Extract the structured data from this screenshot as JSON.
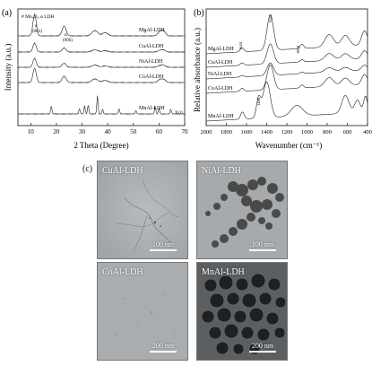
{
  "panel_a": {
    "label": "(a)",
    "legend": "# Mn₃O₄  α LDH",
    "xlabel": "2 Theta (Degree)",
    "ylabel": "Intensity (a.u.)",
    "xticks": [
      "10",
      "20",
      "30",
      "40",
      "50",
      "60",
      "70"
    ],
    "peak_003": "(003)",
    "peak_006": "(006)",
    "alpha": "α",
    "hash": "#",
    "x10": "X10",
    "series": [
      {
        "name": "MgAl-LDH"
      },
      {
        "name": "CuAl-LDH"
      },
      {
        "name": "NiAl-LDH"
      },
      {
        "name": "CoAl-LDH"
      },
      {
        "name": "MnAl-LDH"
      }
    ]
  },
  "panel_b": {
    "label": "(b)",
    "xlabel": "Wavenumber (cm⁻¹)",
    "ylabel": "Relative absorbance (a.u.)",
    "xticks": [
      "2000",
      "1800",
      "1600",
      "1400",
      "1200",
      "1000",
      "800",
      "600",
      "400"
    ],
    "ann_1644": "1644",
    "ann_1344": "1344",
    "ann_1050": "1050",
    "ann_1480": "1480",
    "series": [
      {
        "name": "MgAl-LDH"
      },
      {
        "name": "CuAl-LDH"
      },
      {
        "name": "NiAl-LDH"
      },
      {
        "name": "CoAl-LDH"
      },
      {
        "name": "MnAl-LDH"
      }
    ]
  },
  "panel_c": {
    "label": "(c)",
    "images": [
      {
        "name": "CuAl-LDH",
        "scale": "100 nm"
      },
      {
        "name": "NiAl-LDH",
        "scale": "100 nm"
      },
      {
        "name": "CoAl-LDH",
        "scale": "200 nm"
      },
      {
        "name": "MnAl-LDH",
        "scale": "200 nm"
      }
    ]
  }
}
